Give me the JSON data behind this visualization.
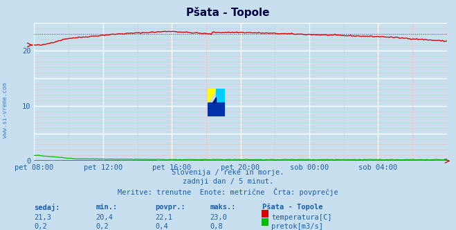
{
  "title": "Pšata - Topole",
  "bg_color": "#c8dff0",
  "plot_bg_color": "#c8dff0",
  "grid_color_major": "#ffffff",
  "grid_color_minor": "#e8c8c8",
  "x_labels": [
    "pet 08:00",
    "pet 12:00",
    "pet 16:00",
    "pet 20:00",
    "sob 00:00",
    "sob 04:00"
  ],
  "x_ticks_norm": [
    0.0,
    0.1667,
    0.3333,
    0.5,
    0.6667,
    0.8333
  ],
  "y_min": 0,
  "y_max": 25,
  "y_ticks": [
    0,
    5,
    10,
    15,
    20,
    25
  ],
  "temp_color": "#dd0000",
  "flow_color": "#00bb00",
  "height_color": "#0000cc",
  "dashed_line_y": 23.0,
  "subtitle1": "Slovenija / reke in morje.",
  "subtitle2": "zadnji dan / 5 minut.",
  "subtitle3": "Meritve: trenutne  Enote: metrične  Črta: povprečje",
  "legend_title": "Pšata - Topole",
  "sedaj_label": "sedaj:",
  "min_label": "min.:",
  "povpr_label": "povpr.:",
  "maks_label": "maks.:",
  "temp_sedaj": "21,3",
  "temp_min": "20,4",
  "temp_povpr": "22,1",
  "temp_maks": "23,0",
  "temp_legend": "temperatura[C]",
  "flow_sedaj": "0,2",
  "flow_min": "0,2",
  "flow_povpr": "0,4",
  "flow_maks": "0,8",
  "flow_legend": "pretok[m3/s]",
  "watermark": "www.si-vreme.com",
  "watermark_color": "#1a5fa8",
  "label_color": "#1a5fa8",
  "title_color": "#000044",
  "n_points": 288
}
